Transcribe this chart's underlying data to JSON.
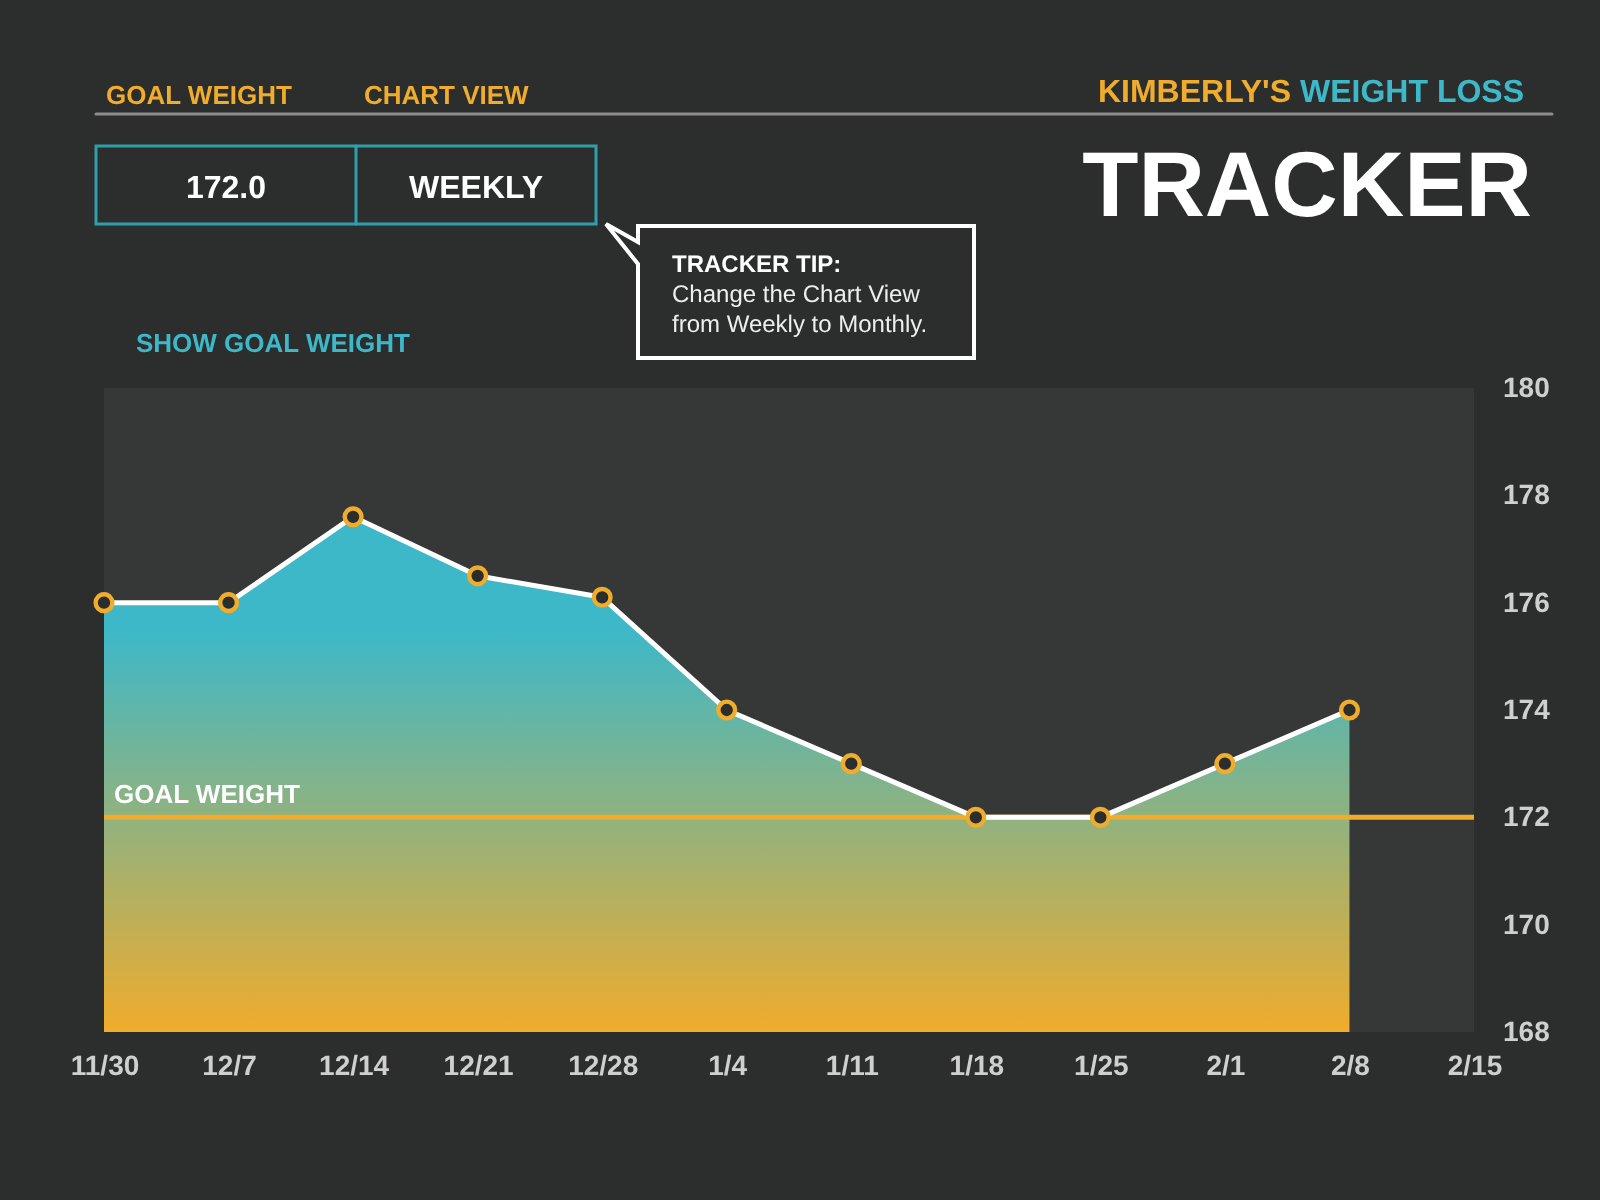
{
  "chart_data": {
    "type": "area",
    "title": "KIMBERLY'S WEIGHT LOSS",
    "subtitle": "TRACKER",
    "categories": [
      "11/30",
      "12/7",
      "12/14",
      "12/21",
      "12/28",
      "1/4",
      "1/11",
      "1/18",
      "1/25",
      "2/1",
      "2/8",
      "2/15"
    ],
    "series": [
      {
        "color": "#3db8c8",
        "values": [
          176,
          176,
          177.6,
          176.5,
          176.1,
          174,
          173,
          172,
          172,
          173,
          174,
          null
        ]
      }
    ],
    "ylim": [
      168,
      180
    ],
    "yticks": [
      168,
      170,
      172,
      174,
      176,
      178,
      180
    ],
    "marker": "circle",
    "line_style": "solid",
    "ref_lines": [
      {
        "axis": "y",
        "value": 172,
        "label": "GOAL WEIGHT",
        "color": "#f0ac2c"
      }
    ],
    "annotations": [
      "GOAL WEIGHT",
      "CHART VIEW",
      "172.0",
      "WEEKLY",
      "TRACKER TIP:",
      "Change the Chart View from Weekly to Monthly.",
      "SHOW GOAL WEIGHT"
    ]
  }
}
